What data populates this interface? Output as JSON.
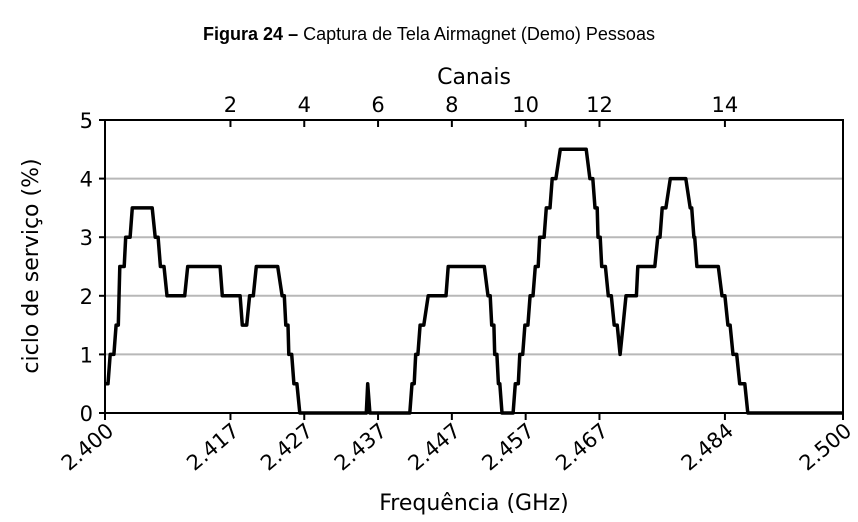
{
  "caption": {
    "label": "Figura 24 –",
    "text": "Captura de Tela Airmagnet (Demo) Pessoas"
  },
  "chart_data": {
    "type": "line",
    "xlabel": "Frequência (GHz)",
    "ylabel": "ciclo de serviço (%)",
    "x2label": "Canais",
    "xlim": [
      2.4,
      2.5
    ],
    "ylim": [
      0,
      5
    ],
    "xticks": [
      {
        "value": 2.4,
        "label": "2.400"
      },
      2.417,
      2.427,
      2.437,
      2.447,
      2.457,
      2.467,
      2.484,
      {
        "value": 2.5,
        "label": "2.500"
      }
    ],
    "x2ticks": [
      {
        "value": 2.417,
        "label": "2"
      },
      {
        "value": 2.427,
        "label": "4"
      },
      {
        "value": 2.437,
        "label": "6"
      },
      {
        "value": 2.447,
        "label": "8"
      },
      {
        "value": 2.457,
        "label": "10"
      },
      {
        "value": 2.467,
        "label": "12"
      },
      {
        "value": 2.484,
        "label": "14"
      }
    ],
    "yticks": [
      0,
      1,
      2,
      3,
      4,
      5
    ],
    "grid": true,
    "series": [
      {
        "color": "#000000",
        "x": [
          2.4,
          2.4004,
          2.4007,
          2.4012,
          2.4015,
          2.4018,
          2.402,
          2.4026,
          2.4028,
          2.4034,
          2.4037,
          2.4064,
          2.4068,
          2.4072,
          2.4075,
          2.408,
          2.4084,
          2.4108,
          2.4112,
          2.4156,
          2.4159,
          2.4183,
          2.4186,
          2.4192,
          2.4196,
          2.4201,
          2.4205,
          2.4234,
          2.424,
          2.4243,
          2.4245,
          2.4248,
          2.4249,
          2.4253,
          2.4256,
          2.426,
          2.4264,
          2.4354,
          2.4356,
          2.4359,
          2.4413,
          2.4416,
          2.4419,
          2.4421,
          2.4424,
          2.4427,
          2.4432,
          2.4438,
          2.4462,
          2.4465,
          2.4514,
          2.4519,
          2.4522,
          2.4524,
          2.4527,
          2.4528,
          2.4531,
          2.4533,
          2.4535,
          2.4538,
          2.4553,
          2.4556,
          2.456,
          2.4562,
          2.4566,
          2.4569,
          2.4573,
          2.4576,
          2.458,
          2.4583,
          2.4587,
          2.4589,
          2.4595,
          2.4598,
          2.4603,
          2.4606,
          2.4611,
          2.4617,
          2.4652,
          2.4657,
          2.4661,
          2.4664,
          2.4667,
          2.4668,
          2.4671,
          2.4673,
          2.4678,
          2.4682,
          2.4686,
          2.469,
          2.4694,
          2.4698,
          2.4702,
          2.4706,
          2.472,
          2.4722,
          2.4745,
          2.4749,
          2.4752,
          2.4755,
          2.476,
          2.4766,
          2.4787,
          2.4793,
          2.4795,
          2.4798,
          2.4799,
          2.4802,
          2.4831,
          2.4836,
          2.484,
          2.4844,
          2.4847,
          2.4851,
          2.4856,
          2.486,
          2.4867,
          2.4871,
          2.5
        ],
        "values": [
          0.5,
          0.5,
          1,
          1,
          1.5,
          1.5,
          2.5,
          2.5,
          3,
          3,
          3.5,
          3.5,
          3,
          3,
          2.5,
          2.5,
          2,
          2,
          2.5,
          2.5,
          2,
          2,
          1.5,
          1.5,
          2,
          2,
          2.5,
          2.5,
          2,
          2,
          1.5,
          1.5,
          1,
          1,
          0.5,
          0.5,
          0,
          0,
          0.5,
          0,
          0,
          0.5,
          0.5,
          1,
          1,
          1.5,
          1.5,
          2,
          2,
          2.5,
          2.5,
          2,
          2,
          1.5,
          1.5,
          1,
          1,
          0.5,
          0.5,
          0,
          0,
          0.5,
          0.5,
          1,
          1,
          1.5,
          1.5,
          2,
          2,
          2.5,
          2.5,
          3,
          3,
          3.5,
          3.5,
          4,
          4,
          4.5,
          4.5,
          4,
          4,
          3.5,
          3.5,
          3,
          3,
          2.5,
          2.5,
          2,
          2,
          1.5,
          1.5,
          1,
          1.5,
          2,
          2,
          2.5,
          2.5,
          3,
          3,
          3.5,
          3.5,
          4,
          4,
          3.5,
          3.5,
          3,
          3,
          2.5,
          2.5,
          2,
          2,
          1.5,
          1.5,
          1,
          1,
          0.5,
          0.5,
          0,
          0
        ]
      }
    ]
  }
}
